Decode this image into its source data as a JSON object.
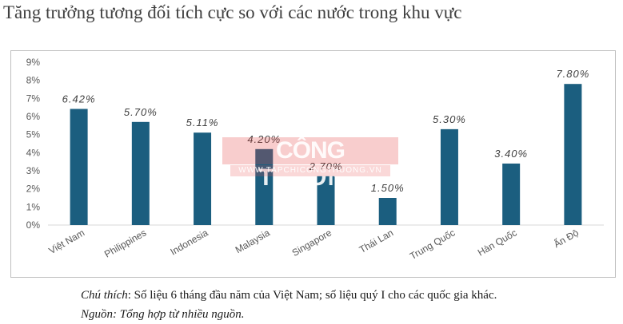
{
  "page_title": "Tăng trưởng tương đối tích cực so với các nước trong khu vực",
  "watermark": {
    "main": "CÔNG THƯƠNG",
    "sub": "WWW.TAPCHICONGTHUONG.VN"
  },
  "notes": {
    "note_label": "Chú thích",
    "note_text": ": Số liệu 6 tháng đầu năm của Việt Nam; số liệu quý I cho các quốc gia khác.",
    "source_text": "Nguồn: Tổng hợp từ nhiều nguồn."
  },
  "colors": {
    "bar": "#1b5e7f",
    "axis_text": "#595959",
    "grid": "#d9d9d9"
  },
  "chart_data": {
    "type": "bar",
    "categories": [
      "Việt Nam",
      "Philippines",
      "Indonesia",
      "Malaysia",
      "Singapore",
      "Thái Lan",
      "Trung Quốc",
      "Hàn Quốc",
      "Ấn Độ"
    ],
    "values": [
      6.42,
      5.7,
      5.11,
      4.2,
      2.7,
      1.5,
      5.3,
      3.4,
      7.8
    ],
    "data_labels": [
      "6.42%",
      "5.70%",
      "5.11%",
      "4.20%",
      "2.70%",
      "1.50%",
      "5.30%",
      "3.40%",
      "7.80%"
    ],
    "y_ticks": [
      "0%",
      "1%",
      "2%",
      "3%",
      "4%",
      "5%",
      "6%",
      "7%",
      "8%",
      "9%"
    ],
    "ylim": [
      0,
      9
    ],
    "grid": true,
    "legend": "none"
  }
}
